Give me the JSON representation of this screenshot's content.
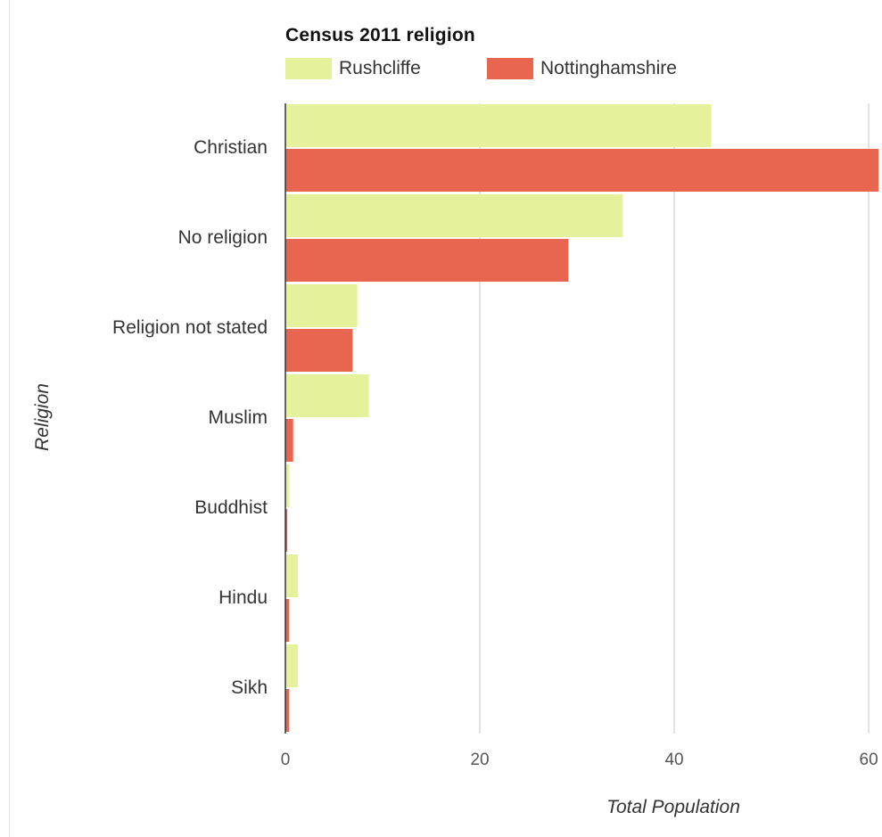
{
  "chart_data": {
    "type": "bar",
    "orientation": "horizontal",
    "title": "Census 2011 religion",
    "xlabel": "Total Population",
    "ylabel": "Religion",
    "categories": [
      "Christian",
      "No religion",
      "Religion not stated",
      "Muslim",
      "Buddhist",
      "Hindu",
      "Sikh"
    ],
    "series": [
      {
        "name": "Rushcliffe",
        "color": "#e5f29b",
        "values": [
          43.8,
          34.7,
          7.4,
          8.6,
          0.4,
          1.3,
          1.3
        ]
      },
      {
        "name": "Nottinghamshire",
        "color": "#e8654f",
        "values": [
          61,
          29.1,
          6.9,
          0.8,
          0.2,
          0.4,
          0.4
        ]
      }
    ],
    "xlim": [
      0,
      61
    ],
    "xticks": [
      0,
      20,
      40,
      60
    ],
    "grid": true,
    "legend_position": "top"
  }
}
